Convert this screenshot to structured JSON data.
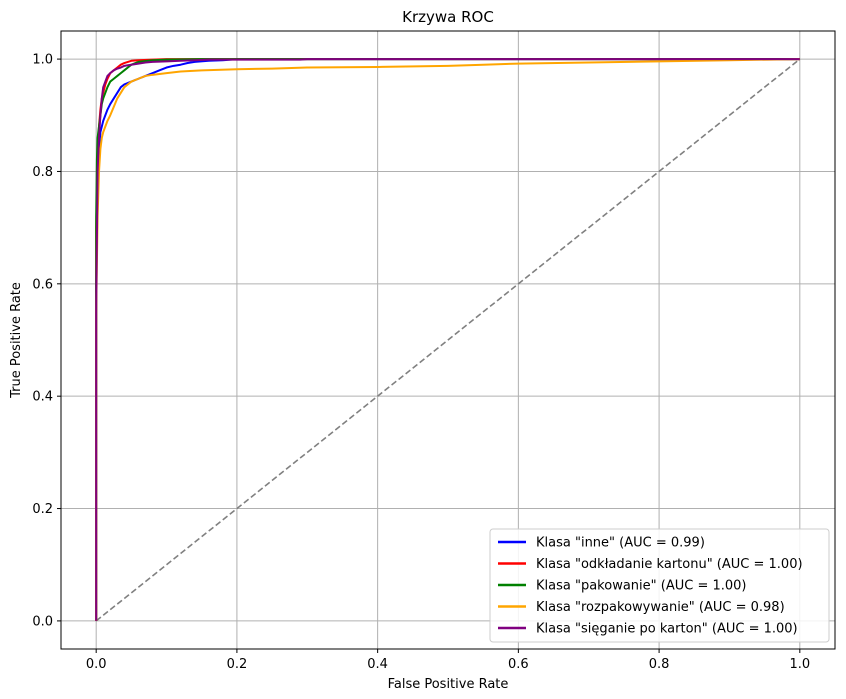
{
  "chart_data": {
    "type": "line",
    "title": "Krzywa ROC",
    "xlabel": "False Positive Rate",
    "ylabel": "True Positive Rate",
    "xlim": [
      -0.05,
      1.05
    ],
    "ylim": [
      -0.05,
      1.05
    ],
    "xticks": [
      0.0,
      0.2,
      0.4,
      0.6,
      0.8,
      1.0
    ],
    "yticks": [
      0.0,
      0.2,
      0.4,
      0.6,
      0.8,
      1.0
    ],
    "xtick_labels": [
      "0.0",
      "0.2",
      "0.4",
      "0.6",
      "0.8",
      "1.0"
    ],
    "ytick_labels": [
      "0.0",
      "0.2",
      "0.4",
      "0.6",
      "0.8",
      "1.0"
    ],
    "grid": true,
    "legend_position": "lower-right",
    "diagonal": {
      "x": [
        0,
        1
      ],
      "y": [
        0,
        1
      ],
      "color": "#808080",
      "style": "dashed"
    },
    "series": [
      {
        "name": "Klasa \"inne\" (AUC = 0.99)",
        "color": "#0000ff",
        "x": [
          0,
          0,
          0.002,
          0.003,
          0.004,
          0.006,
          0.008,
          0.01,
          0.013,
          0.016,
          0.02,
          0.025,
          0.03,
          0.035,
          0.04,
          0.05,
          0.06,
          0.07,
          0.08,
          0.09,
          0.1,
          0.11,
          0.12,
          0.13,
          0.14,
          0.16,
          0.18,
          0.2,
          0.3,
          0.5,
          0.8,
          1.0
        ],
        "y": [
          0,
          0.62,
          0.75,
          0.8,
          0.84,
          0.87,
          0.88,
          0.89,
          0.9,
          0.91,
          0.92,
          0.93,
          0.94,
          0.95,
          0.955,
          0.96,
          0.965,
          0.97,
          0.975,
          0.98,
          0.985,
          0.988,
          0.99,
          0.993,
          0.995,
          0.997,
          0.998,
          1.0,
          1.0,
          1.0,
          1.0,
          1.0
        ]
      },
      {
        "name": "Klasa \"odkładanie kartonu\" (AUC = 1.00)",
        "color": "#ff0000",
        "x": [
          0,
          0,
          0.002,
          0.004,
          0.006,
          0.008,
          0.01,
          0.013,
          0.016,
          0.02,
          0.025,
          0.03,
          0.035,
          0.04,
          0.045,
          0.05,
          0.06,
          0.08,
          0.1,
          0.15,
          0.3,
          0.6,
          1.0
        ],
        "y": [
          0,
          0.7,
          0.82,
          0.88,
          0.91,
          0.93,
          0.94,
          0.955,
          0.965,
          0.975,
          0.98,
          0.985,
          0.99,
          0.993,
          0.995,
          0.997,
          0.998,
          0.999,
          1.0,
          1.0,
          1.0,
          1.0,
          1.0
        ]
      },
      {
        "name": "Klasa \"pakowanie\" (AUC = 1.00)",
        "color": "#008000",
        "x": [
          0,
          0,
          0.001,
          0.002,
          0.004,
          0.006,
          0.008,
          0.01,
          0.013,
          0.016,
          0.02,
          0.025,
          0.03,
          0.035,
          0.04,
          0.045,
          0.05,
          0.06,
          0.08,
          0.1,
          0.15,
          0.3,
          0.6,
          1.0
        ],
        "y": [
          0,
          0.72,
          0.82,
          0.86,
          0.88,
          0.9,
          0.92,
          0.93,
          0.94,
          0.95,
          0.96,
          0.965,
          0.97,
          0.975,
          0.98,
          0.985,
          0.99,
          0.995,
          0.998,
          0.999,
          1.0,
          1.0,
          1.0,
          1.0
        ]
      },
      {
        "name": "Klasa \"rozpakowywanie\" (AUC = 0.98)",
        "color": "#ffa500",
        "x": [
          0,
          0,
          0.002,
          0.004,
          0.006,
          0.008,
          0.01,
          0.013,
          0.016,
          0.02,
          0.025,
          0.03,
          0.035,
          0.04,
          0.05,
          0.06,
          0.07,
          0.08,
          0.1,
          0.12,
          0.15,
          0.2,
          0.25,
          0.3,
          0.4,
          0.5,
          0.55,
          0.6,
          0.7,
          0.8,
          0.9,
          1.0
        ],
        "y": [
          0,
          0.55,
          0.72,
          0.8,
          0.84,
          0.86,
          0.87,
          0.88,
          0.89,
          0.9,
          0.915,
          0.93,
          0.94,
          0.95,
          0.96,
          0.965,
          0.97,
          0.972,
          0.975,
          0.978,
          0.98,
          0.982,
          0.983,
          0.985,
          0.986,
          0.988,
          0.99,
          0.992,
          0.994,
          0.996,
          0.998,
          1.0
        ]
      },
      {
        "name": "Klasa \"sięganie po karton\" (AUC = 1.00)",
        "color": "#800080",
        "x": [
          0,
          0,
          0.002,
          0.004,
          0.006,
          0.008,
          0.01,
          0.013,
          0.016,
          0.02,
          0.025,
          0.03,
          0.035,
          0.04,
          0.05,
          0.06,
          0.07,
          0.08,
          0.1,
          0.12,
          0.14,
          0.16,
          0.2,
          0.29,
          0.3,
          0.6,
          1.0
        ],
        "y": [
          0,
          0.55,
          0.8,
          0.86,
          0.9,
          0.93,
          0.95,
          0.96,
          0.97,
          0.975,
          0.98,
          0.983,
          0.985,
          0.988,
          0.99,
          0.992,
          0.994,
          0.995,
          0.996,
          0.997,
          0.998,
          0.999,
          0.999,
          0.999,
          1.0,
          1.0,
          1.0
        ]
      }
    ]
  }
}
